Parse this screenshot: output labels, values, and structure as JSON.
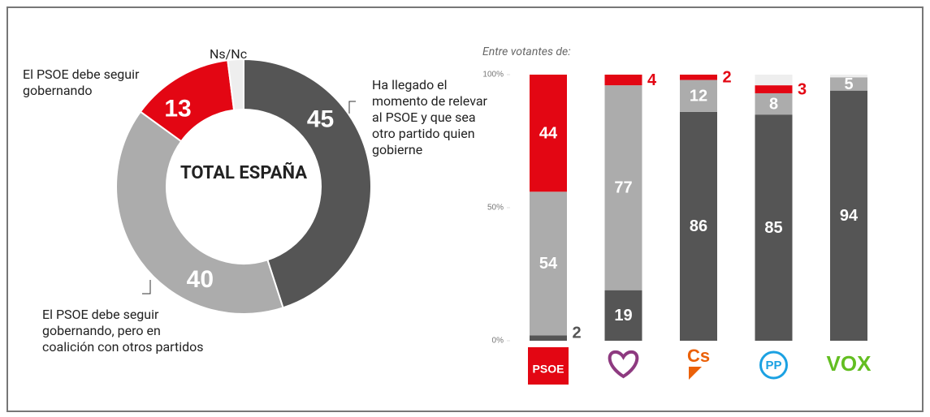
{
  "chart_data": [
    {
      "type": "donut",
      "center_text": "TOTAL ESPAÑA",
      "categories": [
        "Ha llegado el momento de relevar al PSOE y que sea otro partido quien gobierne",
        "El PSOE debe seguir gobernando, pero en coalición con otros partidos",
        "El PSOE debe seguir gobernando",
        "Ns/Nc"
      ],
      "values": [
        45,
        40,
        13,
        2
      ],
      "value_labels": [
        "45",
        "40",
        "13",
        null
      ],
      "colors": [
        "#555555",
        "#acacac",
        "#e30613",
        "#eeeeee"
      ]
    },
    {
      "type": "stacked_bar",
      "subtitle": "Entre votantes de:",
      "categories": [
        "PSOE",
        null,
        "Cs",
        "PP",
        "VOX"
      ],
      "ylim": [
        0,
        100
      ],
      "yticks": [
        {
          "value": 0,
          "label": "0%"
        },
        {
          "value": 50,
          "label": "50%"
        },
        {
          "value": 100,
          "label": "100%"
        }
      ],
      "series": [
        {
          "color": "#555555",
          "values": [
            2,
            19,
            86,
            85,
            94
          ]
        },
        {
          "color": "#acacac",
          "values": [
            54,
            77,
            12,
            8,
            5
          ]
        },
        {
          "color": "#e30613",
          "values": [
            44,
            4,
            2,
            3,
            0
          ]
        },
        {
          "color": "#eeeeee",
          "values": [
            0,
            0,
            0,
            4,
            1
          ],
          "value_labels": [
            null,
            null,
            null,
            null,
            null
          ]
        }
      ]
    }
  ]
}
